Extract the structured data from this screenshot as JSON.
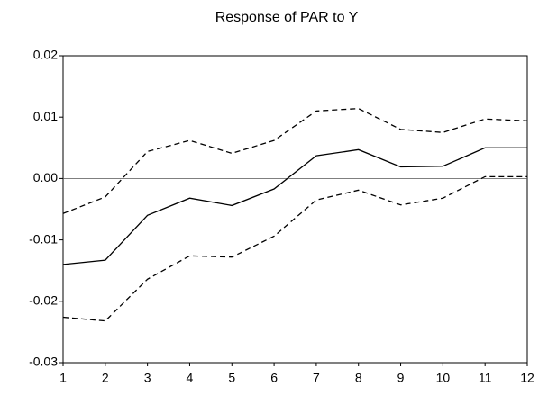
{
  "chart_data": {
    "type": "line",
    "title": "Response of PAR to Y",
    "x": [
      1,
      2,
      3,
      4,
      5,
      6,
      7,
      8,
      9,
      10,
      11,
      12
    ],
    "series": [
      {
        "color": "#000000",
        "dash": "solid",
        "values": [
          -0.014,
          -0.0133,
          -0.006,
          -0.0032,
          -0.0044,
          -0.0017,
          0.0037,
          0.0047,
          0.0019,
          0.002,
          0.005,
          0.005
        ]
      },
      {
        "color": "#000000",
        "dash": "dashed",
        "values": [
          -0.0057,
          -0.003,
          0.0044,
          0.0062,
          0.0041,
          0.0062,
          0.011,
          0.0114,
          0.008,
          0.0075,
          0.0097,
          0.0094
        ]
      },
      {
        "color": "#000000",
        "dash": "dashed",
        "values": [
          -0.0226,
          -0.0232,
          -0.0164,
          -0.0126,
          -0.0128,
          -0.0094,
          -0.0035,
          -0.0019,
          -0.0043,
          -0.0032,
          0.0003,
          0.0003
        ]
      }
    ],
    "xlim": [
      1,
      12
    ],
    "xticks": [
      1,
      2,
      3,
      4,
      5,
      6,
      7,
      8,
      9,
      10,
      11,
      12
    ],
    "ylim": [
      -0.03,
      0.02
    ],
    "yticks": [
      -0.03,
      -0.02,
      -0.01,
      {
        "value": 0,
        "label": "0.00"
      },
      0.01,
      0.02
    ],
    "zero_line": true,
    "grid": false
  }
}
